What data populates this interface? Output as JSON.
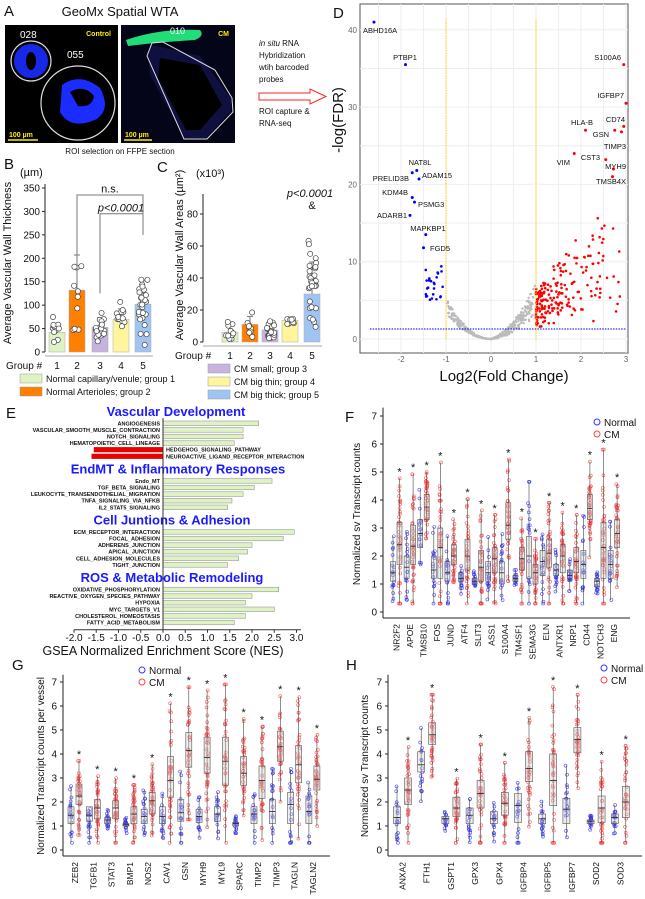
{
  "panel_letters": {
    "a": "A",
    "b": "B",
    "c": "C",
    "d": "D",
    "e": "E",
    "f": "F",
    "g": "G",
    "h": "H"
  },
  "panel_a": {
    "title": "GeoMx Spatial WTA",
    "roi_ids": [
      "028",
      "055",
      "010"
    ],
    "control_label": "Control",
    "cm_label": "CM",
    "scale_bar": "100 µm",
    "caption": "ROI selection on FFPE section",
    "workflow_italic": "in situ",
    "workflow_lines": [
      " RNA",
      "Hybridization",
      "wtih barcoded",
      "probes"
    ],
    "capture_lines": [
      "ROI capture &",
      "RNA-seq"
    ],
    "arrow_color": "#ff2020"
  },
  "legend_groups": [
    {
      "label": "Normal capillary/venule; group 1",
      "color": "#dff2c4"
    },
    {
      "label": "Normal Arterioles; group 2",
      "color": "#ff7f00"
    },
    {
      "label": "CM small; group 3",
      "color": "#c6b4df"
    },
    {
      "label": "CM big thin; group 4",
      "color": "#fff59d"
    },
    {
      "label": "CM big thick; group 5",
      "color": "#a0c4f2"
    }
  ],
  "chart_data": [
    {
      "panel": "B",
      "type": "bar",
      "ylabel": "Average Vascular Wall Thickness",
      "unit": "(µm)",
      "xlabel": "Group #",
      "categories": [
        "1",
        "2",
        "3",
        "4",
        "5"
      ],
      "values": [
        42,
        132,
        53,
        70,
        102
      ],
      "sd": [
        15,
        75,
        20,
        22,
        50
      ],
      "ylim": [
        0,
        350
      ],
      "yticks": [
        "0",
        "50",
        "100",
        "150",
        "200",
        "250",
        "300",
        "350"
      ],
      "annotations": [
        {
          "text": "n.s.",
          "from": "2",
          "to": "5"
        },
        {
          "text": "p<0.0001",
          "from": "3",
          "to": "5"
        }
      ]
    },
    {
      "panel": "C",
      "type": "bar",
      "ylabel": "Average Vascular Wall Areas",
      "ylabel_unit": "(µm²)",
      "unit": "(x10³)",
      "xlabel": "Group #",
      "categories": [
        "1",
        "2",
        "3",
        "4",
        "5"
      ],
      "values": [
        6,
        11,
        7.5,
        13.5,
        30
      ],
      "sd": [
        4,
        5,
        3,
        2,
        20
      ],
      "ylim": [
        0,
        90
      ],
      "yticks": [
        "0",
        "20",
        "40",
        "60",
        "80"
      ],
      "annotations": [
        {
          "text": "p<0.0001",
          "group": "5"
        },
        {
          "text": "&",
          "group": "5"
        }
      ]
    },
    {
      "panel": "D",
      "type": "scatter",
      "xlabel": "Log2(Fold Change)",
      "ylabel": "-log(FDR)",
      "xlim": [
        -2.8,
        3.1
      ],
      "ylim": [
        -3,
        43
      ],
      "xticks": [
        "-2",
        "-1",
        "0",
        "1",
        "2",
        "3"
      ],
      "yticks": [
        "0",
        "10",
        "20",
        "30",
        "40"
      ],
      "fold_change_cutoffs": [
        -1,
        1
      ],
      "fdr_cutoff": 1.3,
      "colors": {
        "down": "#0000ff",
        "up": "#ff0000",
        "ns": "#bbbbbb",
        "cutoff": "#ffcc00"
      },
      "labeled_points": [
        {
          "gene": "ABHD16A",
          "x": -2.6,
          "y": 41
        },
        {
          "gene": "PTBP1",
          "x": -1.9,
          "y": 35.5
        },
        {
          "gene": "NAT8L",
          "x": -1.65,
          "y": 21.8
        },
        {
          "gene": "PRELID3B",
          "x": -1.75,
          "y": 21.5
        },
        {
          "gene": "ADAM15",
          "x": -1.6,
          "y": 20.7
        },
        {
          "gene": "KDM4B",
          "x": -1.75,
          "y": 18.3
        },
        {
          "gene": "PSMG3",
          "x": -1.7,
          "y": 17.7
        },
        {
          "gene": "ADARB1",
          "x": -1.8,
          "y": 16
        },
        {
          "gene": "MAPKBP1",
          "x": -1.45,
          "y": 13.5
        },
        {
          "gene": "FGD5",
          "x": -1.5,
          "y": 11.8
        },
        {
          "gene": "S100A6",
          "x": 2.95,
          "y": 35.5
        },
        {
          "gene": "IGFBP7",
          "x": 3.0,
          "y": 30.5
        },
        {
          "gene": "HLA-B",
          "x": 2.1,
          "y": 27
        },
        {
          "gene": "CD74",
          "x": 2.95,
          "y": 27.5
        },
        {
          "gene": "GSN",
          "x": 2.75,
          "y": 27
        },
        {
          "gene": "TIMP3",
          "x": 2.9,
          "y": 26.8
        },
        {
          "gene": "CST3",
          "x": 2.55,
          "y": 23.2
        },
        {
          "gene": "VIM",
          "x": 1.85,
          "y": 24
        },
        {
          "gene": "MYH9",
          "x": 2.72,
          "y": 22
        },
        {
          "gene": "TMSB4X",
          "x": 2.7,
          "y": 21
        }
      ]
    },
    {
      "panel": "E",
      "type": "bar",
      "xlabel": "GSEA Normalized Enrichment Score (NES)",
      "xlim": [
        -2.0,
        3.0
      ],
      "xticks": [
        "-2.0",
        "-1.5",
        "-1.0",
        "-0.5",
        "0.0",
        "0.5",
        "1.0",
        "1.5",
        "2.0",
        "2.5",
        "3.0"
      ],
      "groups": [
        {
          "title": "Vascular Development",
          "items": [
            {
              "label": "ANGIOGENESIS",
              "nes": 2.15
            },
            {
              "label": "VASCULAR_SMOOTH_MUSCLE_CONTRACTION",
              "nes": 1.8
            },
            {
              "label": "NOTCH_SIGNALING",
              "nes": 1.8
            },
            {
              "label": "HEMATOPOIETIC_CELL_LINEAGE",
              "nes": 1.6
            },
            {
              "label": "HEDGEHOG_SIGNALING_PATHWAY",
              "nes": -1.55
            },
            {
              "label": "NEUROACTIVE_LIGAND_RECEPTOR_INTERACTION",
              "nes": -1.6
            }
          ]
        },
        {
          "title": "EndMT & Inflammatory Responses",
          "items": [
            {
              "label": "Endo_MT",
              "nes": 2.45
            },
            {
              "label": "TGF_BETA_SIGNALING",
              "nes": 2.05
            },
            {
              "label": "LEUKOCYTE_TRANSENDOTHELIAL_MIGRATION",
              "nes": 1.8
            },
            {
              "label": "TNFA_SIGNALING_VIA_NFKB",
              "nes": 1.55
            },
            {
              "label": "IL2_STAT5_SIGNALING",
              "nes": 1.45
            }
          ]
        },
        {
          "title": "Cell Juntions & Adhesion",
          "items": [
            {
              "label": "ECM_RECEPTOR_INTERACTION",
              "nes": 2.95
            },
            {
              "label": "FOCAL_ADHESION",
              "nes": 2.7
            },
            {
              "label": "ADHERENS_JUNCTION",
              "nes": 2.0
            },
            {
              "label": "APICAL_JUNCTION",
              "nes": 1.9
            },
            {
              "label": "CELL_ADHESION_MOLECULES",
              "nes": 1.7
            },
            {
              "label": "TIGHT_JUNCTION",
              "nes": 1.45
            }
          ]
        },
        {
          "title": "ROS & Metabolic Remodeling",
          "items": [
            {
              "label": "OXIDATIVE_PHOSPHORYLATION",
              "nes": 2.6
            },
            {
              "label": "REACTIVE_OXYGEN_SPECIES_PATHWAY",
              "nes": 2.0
            },
            {
              "label": "HYPOXIA",
              "nes": 1.85
            },
            {
              "label": "MYC_TARGETS_V1",
              "nes": 2.5
            },
            {
              "label": "CHOLESTEROL_HOMEOSTASIS",
              "nes": 1.85
            },
            {
              "label": "FATTY_ACID_METABOLISM",
              "nes": 1.6
            }
          ]
        }
      ],
      "colors": {
        "positive": "#dff2c4",
        "negative": "#ee0000"
      }
    },
    {
      "panel": "F",
      "type": "box",
      "ylabel": "Normalized sv Transcript counts",
      "legend": [
        "Normal",
        "CM"
      ],
      "ylim": [
        0,
        7
      ],
      "yticks": [
        "0",
        "1",
        "2",
        "3",
        "4",
        "5",
        "6",
        "7"
      ],
      "sig": "*",
      "genes": [
        {
          "name": "NR2F2",
          "normal": [
            1.1,
            1.4,
            1.8
          ],
          "cm": [
            1.7,
            2.4,
            3.2
          ]
        },
        {
          "name": "APOE",
          "normal": [
            1.2,
            1.6,
            2.0
          ],
          "cm": [
            1.7,
            2.35,
            3.1
          ]
        },
        {
          "name": "TMSB10",
          "normal": [
            2.3,
            2.8,
            3.3
          ],
          "cm": [
            3.3,
            3.75,
            4.2
          ]
        },
        {
          "name": "FOS",
          "normal": [
            1.2,
            1.5,
            2.0
          ],
          "cm": [
            1.2,
            2.3,
            3.0
          ]
        },
        {
          "name": "JUND",
          "normal": [
            1.1,
            1.4,
            1.8
          ],
          "cm": [
            1.7,
            2.0,
            2.4
          ]
        },
        {
          "name": "ATF4",
          "normal": [
            1.1,
            1.2,
            1.4
          ],
          "cm": [
            1.5,
            2.0,
            2.6
          ]
        },
        {
          "name": "SLIT3",
          "normal": [
            1.0,
            1.1,
            1.2
          ],
          "cm": [
            1.1,
            1.6,
            2.2
          ]
        },
        {
          "name": "ASS1",
          "normal": [
            1.1,
            1.4,
            1.8
          ],
          "cm": [
            1.4,
            1.9,
            2.3
          ]
        },
        {
          "name": "S100A4",
          "normal": [
            1.0,
            1.4,
            1.8
          ],
          "cm": [
            2.6,
            3.1,
            3.9
          ]
        },
        {
          "name": "TM4SF1",
          "normal": [
            1.1,
            1.2,
            1.3
          ],
          "cm": [
            1.5,
            1.9,
            2.3
          ]
        },
        {
          "name": "SEMA3G",
          "normal": [
            1.2,
            2.0,
            2.7
          ],
          "cm": [
            1.0,
            1.4,
            1.7
          ]
        },
        {
          "name": "ELN",
          "normal": [
            1.3,
            1.8,
            2.2
          ],
          "cm": [
            1.6,
            2.1,
            2.6
          ]
        },
        {
          "name": "ANTXR1",
          "normal": [
            1.3,
            1.5,
            1.7
          ],
          "cm": [
            1.4,
            2.0,
            2.4
          ]
        },
        {
          "name": "NRP1",
          "normal": [
            1.2,
            1.3,
            1.5
          ],
          "cm": [
            1.4,
            1.8,
            2.3
          ]
        },
        {
          "name": "CD44",
          "normal": [
            1.2,
            1.7,
            2.2
          ],
          "cm": [
            3.3,
            3.7,
            4.2
          ]
        },
        {
          "name": "NOTCH3",
          "normal": [
            0.9,
            1.1,
            1.2
          ],
          "cm": [
            1.2,
            2.3,
            3.2
          ]
        },
        {
          "name": "ENG",
          "normal": [
            1.2,
            1.7,
            2.2
          ],
          "cm": [
            2.3,
            2.8,
            3.3
          ]
        }
      ]
    },
    {
      "panel": "G",
      "type": "box",
      "ylabel": "Normalized Transcript counts per vessel",
      "legend": [
        "Normal",
        "CM"
      ],
      "ylim": [
        0,
        7
      ],
      "yticks": [
        "0",
        "1",
        "2",
        "3",
        "4",
        "5",
        "6",
        "7"
      ],
      "sig": "*",
      "genes": [
        {
          "name": "ZEB2",
          "normal": [
            1.1,
            1.45,
            1.8
          ],
          "cm": [
            1.9,
            2.25,
            2.75
          ]
        },
        {
          "name": "TGFB1",
          "normal": [
            1.2,
            1.45,
            1.8
          ],
          "cm": [
            1.3,
            1.75,
            2.1
          ]
        },
        {
          "name": "STAT3",
          "normal": [
            1.1,
            1.25,
            1.35
          ],
          "cm": [
            1.3,
            1.75,
            2.05
          ]
        },
        {
          "name": "BMP1",
          "normal": [
            1.0,
            1.05,
            1.1
          ],
          "cm": [
            1.1,
            1.5,
            1.8
          ]
        },
        {
          "name": "NOS2",
          "normal": [
            1.1,
            1.4,
            1.7
          ],
          "cm": [
            1.5,
            2.05,
            2.4
          ]
        },
        {
          "name": "CAV1",
          "normal": [
            1.1,
            1.4,
            1.8
          ],
          "cm": [
            2.2,
            2.9,
            3.9
          ]
        },
        {
          "name": "GSN",
          "normal": [
            1.2,
            1.55,
            2.1
          ],
          "cm": [
            3.45,
            4.15,
            4.9
          ]
        },
        {
          "name": "MYH9",
          "normal": [
            1.15,
            1.4,
            1.7
          ],
          "cm": [
            3.2,
            3.85,
            4.7
          ]
        },
        {
          "name": "MYL9",
          "normal": [
            1.2,
            1.5,
            1.8
          ],
          "cm": [
            2.7,
            3.7,
            4.7
          ]
        },
        {
          "name": "SPARC",
          "normal": [
            1.0,
            1.1,
            1.15
          ],
          "cm": [
            2.7,
            3.2,
            3.9
          ]
        },
        {
          "name": "TIMP2",
          "normal": [
            1.1,
            1.5,
            1.8
          ],
          "cm": [
            2.15,
            2.9,
            3.5
          ]
        },
        {
          "name": "TIMP3",
          "normal": [
            1.1,
            1.6,
            2.1
          ],
          "cm": [
            3.7,
            4.3,
            4.95
          ]
        },
        {
          "name": "TAGLN",
          "normal": [
            1.1,
            1.9,
            2.4
          ],
          "cm": [
            2.8,
            3.55,
            4.35
          ]
        },
        {
          "name": "TAGLN2",
          "normal": [
            1.1,
            1.6,
            2.25
          ],
          "cm": [
            2.5,
            2.95,
            3.5
          ]
        }
      ]
    },
    {
      "panel": "H",
      "type": "box",
      "ylabel": "Normalized sv Transcript counts",
      "legend": [
        "Normal",
        "CM"
      ],
      "ylim": [
        0,
        7
      ],
      "yticks": [
        "0",
        "1",
        "2",
        "3",
        "4",
        "5",
        "6",
        "7"
      ],
      "sig": "*",
      "genes": [
        {
          "name": "ANXA2",
          "normal": [
            1.1,
            1.35,
            1.8
          ],
          "cm": [
            1.9,
            2.5,
            3.0
          ]
        },
        {
          "name": "FTH1",
          "normal": [
            3.25,
            3.55,
            4.1
          ],
          "cm": [
            4.4,
            4.8,
            5.3
          ]
        },
        {
          "name": "GSPT1",
          "normal": [
            1.1,
            1.3,
            1.4
          ],
          "cm": [
            1.4,
            1.75,
            2.2
          ]
        },
        {
          "name": "GPX3",
          "normal": [
            1.1,
            1.45,
            1.75
          ],
          "cm": [
            1.75,
            2.35,
            2.9
          ]
        },
        {
          "name": "GPX4",
          "normal": [
            1.1,
            1.3,
            1.6
          ],
          "cm": [
            1.45,
            1.95,
            2.4
          ]
        },
        {
          "name": "IGFBP4",
          "normal": [
            1.15,
            1.85,
            2.35
          ],
          "cm": [
            2.85,
            3.4,
            4.1
          ]
        },
        {
          "name": "IGFBP5",
          "normal": [
            1.1,
            1.3,
            1.5
          ],
          "cm": [
            1.85,
            2.9,
            4.0
          ]
        },
        {
          "name": "IGFBP7",
          "normal": [
            1.1,
            1.7,
            2.15
          ],
          "cm": [
            4.05,
            4.6,
            5.1
          ]
        },
        {
          "name": "SOD2",
          "normal": [
            1.1,
            1.2,
            1.25
          ],
          "cm": [
            1.15,
            1.75,
            2.25
          ]
        },
        {
          "name": "SOD3",
          "normal": [
            1.1,
            1.35,
            1.5
          ],
          "cm": [
            1.35,
            2.0,
            2.65
          ]
        }
      ]
    }
  ]
}
